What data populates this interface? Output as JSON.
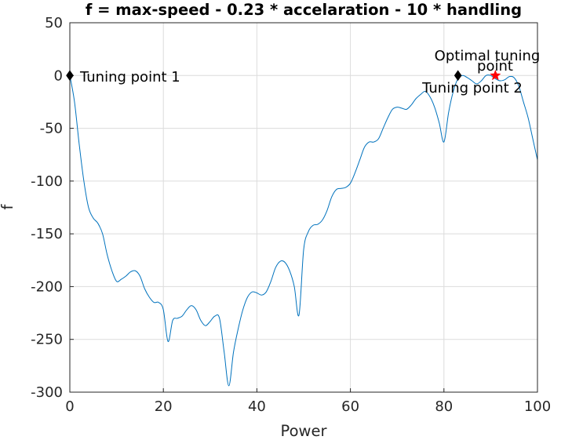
{
  "chart_data": {
    "type": "line",
    "title": "f = max-speed - 0.23 * accelaration - 10 * handling",
    "xlabel": "Power",
    "ylabel": "f",
    "xlim": [
      0,
      100
    ],
    "ylim": [
      -300,
      50
    ],
    "x_ticks": [
      0,
      20,
      40,
      60,
      80,
      100
    ],
    "y_ticks": [
      50,
      0,
      -50,
      -100,
      -150,
      -200,
      -250,
      -300
    ],
    "x_tick_labels": [
      "0",
      "20",
      "40",
      "60",
      "80",
      "100"
    ],
    "y_tick_labels": [
      "50",
      "0",
      "-50",
      "-100",
      "-150",
      "-200",
      "-250",
      "-300"
    ],
    "grid": true,
    "line_color": "#0072bd",
    "series": [
      {
        "x": [
          0,
          1,
          2,
          3,
          4,
          5,
          6,
          7,
          8,
          9,
          10,
          11,
          12,
          13,
          14,
          15,
          16,
          17,
          18,
          19,
          20,
          21,
          22,
          23,
          24,
          25,
          26,
          27,
          28,
          29,
          30,
          31,
          32,
          33,
          34,
          35,
          36,
          37,
          38,
          39,
          40,
          41,
          42,
          43,
          44,
          45,
          46,
          47,
          48,
          49,
          50,
          51,
          52,
          53,
          54,
          55,
          56,
          57,
          58,
          59,
          60,
          61,
          62,
          63,
          64,
          65,
          66,
          67,
          68,
          69,
          70,
          71,
          72,
          73,
          74,
          75,
          76,
          77,
          78,
          79,
          80,
          81,
          82,
          83,
          84,
          85,
          86,
          87,
          88,
          89,
          90,
          91,
          92,
          93,
          94,
          95,
          96,
          97,
          98,
          99,
          100
        ],
        "y": [
          0,
          -25,
          -65,
          -100,
          -125,
          -135,
          -140,
          -150,
          -170,
          -185,
          -195,
          -193,
          -190,
          -186,
          -185,
          -190,
          -202,
          -210,
          -215,
          -215,
          -222,
          -252,
          -232,
          -230,
          -228,
          -222,
          -218,
          -222,
          -232,
          -237,
          -233,
          -228,
          -230,
          -262,
          -294,
          -262,
          -240,
          -222,
          -210,
          -205,
          -206,
          -208,
          -205,
          -195,
          -182,
          -176,
          -177,
          -185,
          -200,
          -227,
          -165,
          -148,
          -142,
          -141,
          -137,
          -128,
          -115,
          -108,
          -107,
          -106,
          -102,
          -92,
          -80,
          -68,
          -63,
          -63,
          -60,
          -50,
          -40,
          -32,
          -30,
          -31,
          -32,
          -28,
          -22,
          -18,
          -15,
          -20,
          -30,
          -45,
          -63,
          -35,
          -15,
          -3,
          0,
          -2,
          -5,
          -8,
          -5,
          0,
          0,
          -3,
          -5,
          -4,
          -1,
          -2,
          -10,
          -25,
          -40,
          -60,
          -80
        ]
      }
    ],
    "annotations": [
      {
        "text": "Tuning point 1",
        "x": 0,
        "y": 0,
        "marker": "diamond",
        "marker_color": "#000000"
      },
      {
        "text": "Tuning point 2",
        "x": 83,
        "y": 0,
        "marker": "diamond",
        "marker_color": "#000000"
      },
      {
        "text_lines": [
          "Optimal tuning",
          "point"
        ],
        "x": 91,
        "y": 0,
        "marker": "star",
        "marker_color": "#ff0000"
      }
    ]
  }
}
